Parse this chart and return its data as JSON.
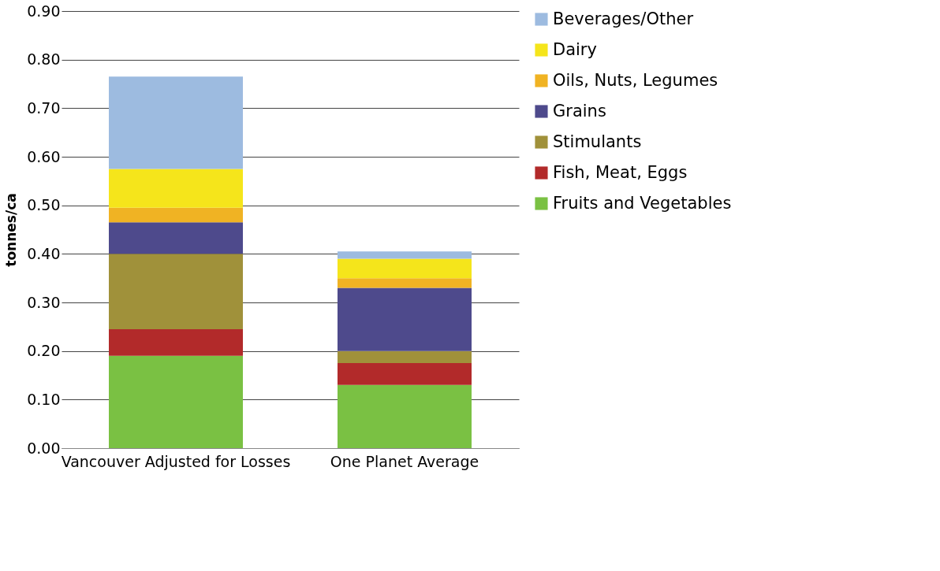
{
  "chart_data": {
    "type": "bar",
    "stacked": true,
    "ylabel": "tonnes/ca",
    "categories": [
      "Vancouver Adjusted for Losses",
      "One Planet Average"
    ],
    "series": [
      {
        "name": "Fruits and Vegetables",
        "color": "#7ac143",
        "values": [
          0.19,
          0.13
        ]
      },
      {
        "name": "Fish, Meat, Eggs",
        "color": "#b22a2a",
        "values": [
          0.055,
          0.045
        ]
      },
      {
        "name": "Stimulants",
        "color": "#a0913a",
        "values": [
          0.155,
          0.025
        ]
      },
      {
        "name": "Grains",
        "color": "#4e4a8c",
        "values": [
          0.065,
          0.13
        ]
      },
      {
        "name": "Oils, Nuts, Legumes",
        "color": "#f0b323",
        "values": [
          0.03,
          0.02
        ]
      },
      {
        "name": "Dairy",
        "color": "#f5e51b",
        "values": [
          0.08,
          0.04
        ]
      },
      {
        "name": "Beverages/Other",
        "color": "#9dbbe0",
        "values": [
          0.19,
          0.015
        ]
      }
    ],
    "ylim": [
      0,
      0.9
    ],
    "yticks": [
      {
        "value": 0,
        "label": "0.00"
      },
      {
        "value": 0.1,
        "label": "0.10"
      },
      {
        "value": 0.2,
        "label": "0.20"
      },
      {
        "value": 0.3,
        "label": "0.30"
      },
      {
        "value": 0.4,
        "label": "0.40"
      },
      {
        "value": 0.5,
        "label": "0.50"
      },
      {
        "value": 0.6,
        "label": "0.60"
      },
      {
        "value": 0.7,
        "label": "0.70"
      },
      {
        "value": 0.8,
        "label": "0.80"
      },
      {
        "value": 0.9,
        "label": "0.90"
      }
    ],
    "grid": "y",
    "legend": "right"
  }
}
